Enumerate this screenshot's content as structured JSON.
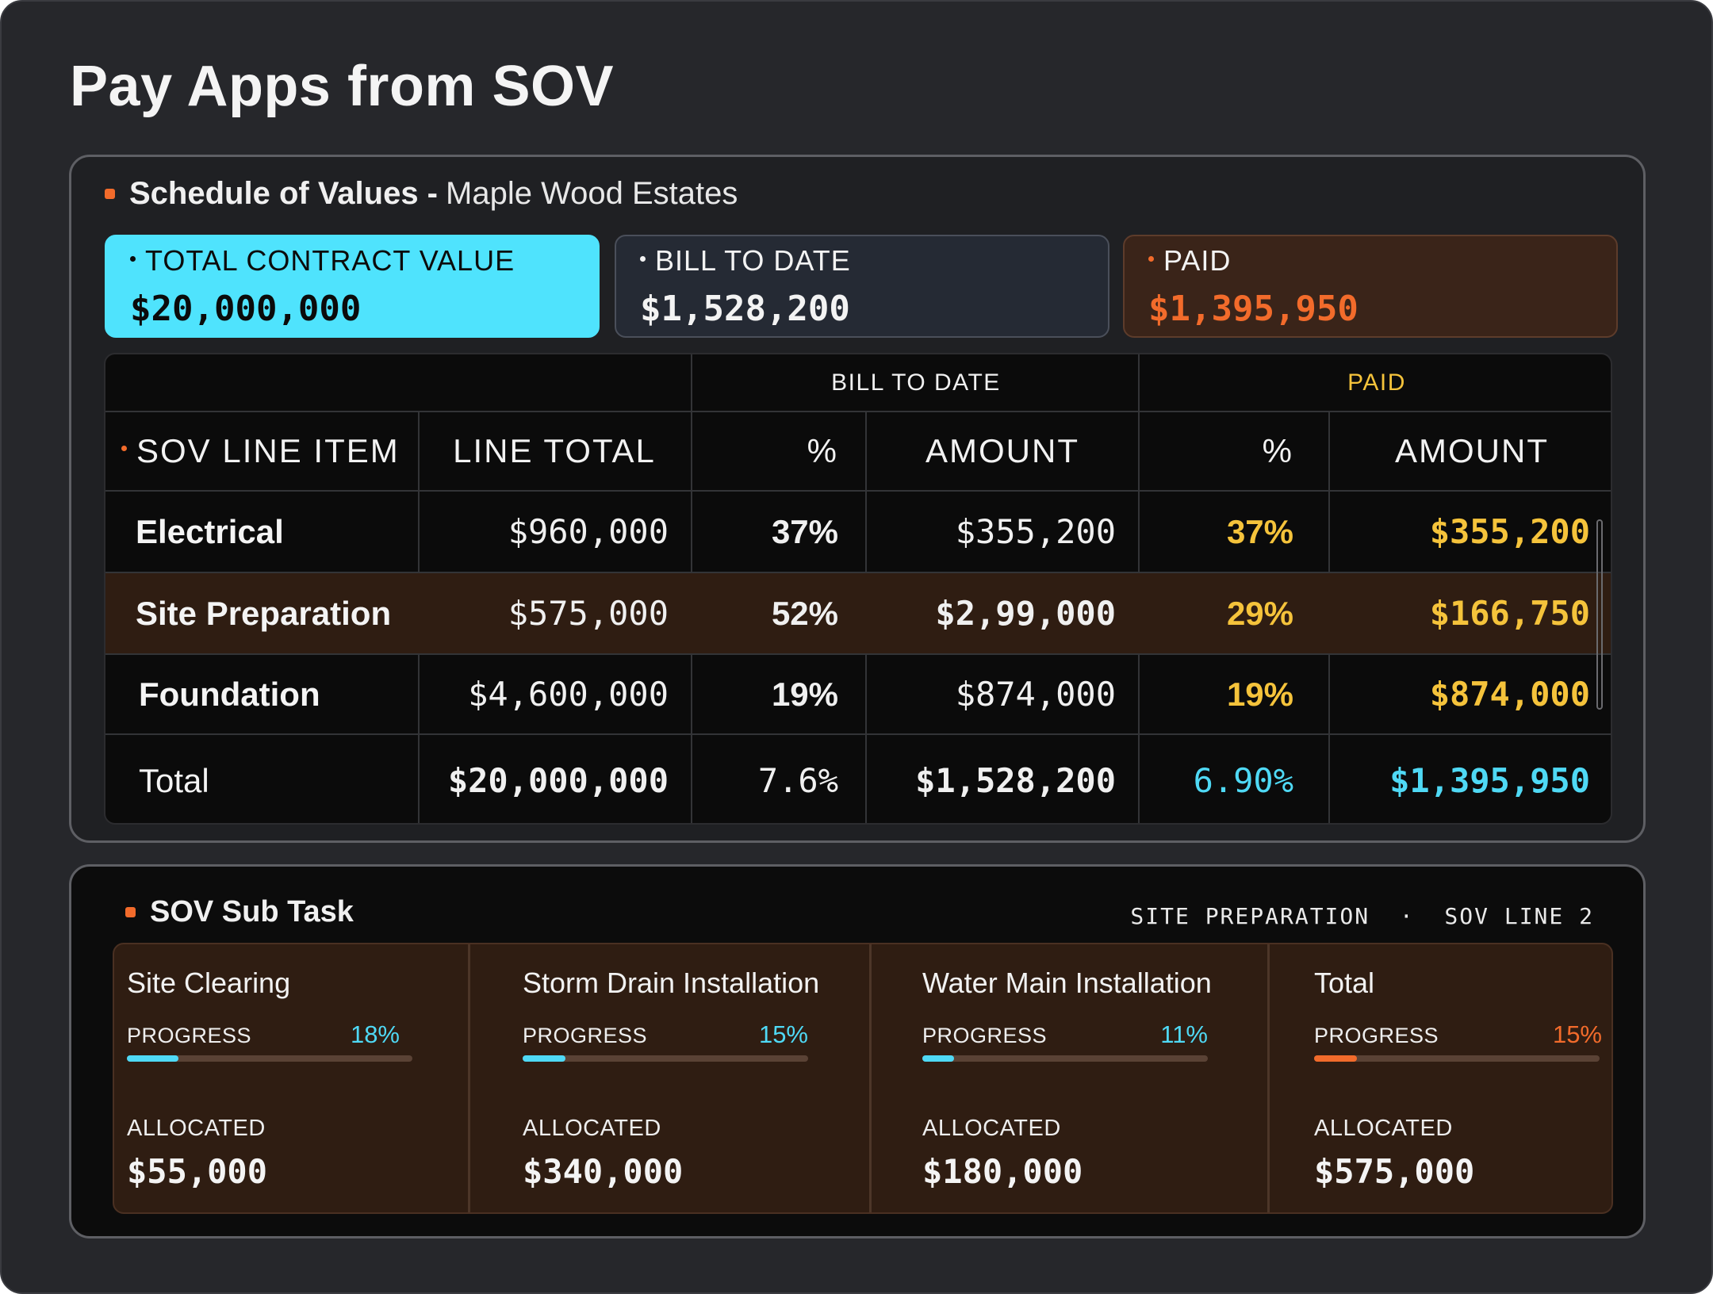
{
  "page_title": "Pay Apps from SOV",
  "sov": {
    "heading_bold": "Schedule of Values -",
    "project": "Maple Wood Estates",
    "stats": {
      "total_label": "TOTAL CONTRACT VALUE",
      "total_value": "$20,000,000",
      "bill_label": "BILL TO DATE",
      "bill_value": "$1,528,200",
      "paid_label": "PAID",
      "paid_value": "$1,395,950"
    },
    "table": {
      "group_bill": "BILL TO DATE",
      "group_paid": "PAID",
      "headers": {
        "item": "SOV LINE ITEM",
        "line_total": "LINE TOTAL",
        "bill_pct": "%",
        "bill_amount": "AMOUNT",
        "paid_pct": "%",
        "paid_amount": "AMOUNT"
      },
      "rows": [
        {
          "item": "Electrical",
          "line_total": "$960,000",
          "bill_pct": "37%",
          "bill_amount": "$355,200",
          "paid_pct": "37%",
          "paid_amount": "$355,200"
        },
        {
          "item": "Site Preparation",
          "line_total": "$575,000",
          "bill_pct": "52%",
          "bill_amount": "$2,99,000",
          "paid_pct": "29%",
          "paid_amount": "$166,750"
        },
        {
          "item": "Foundation",
          "line_total": "$4,600,000",
          "bill_pct": "19%",
          "bill_amount": "$874,000",
          "paid_pct": "19%",
          "paid_amount": "$874,000"
        }
      ],
      "total": {
        "item": "Total",
        "line_total": "$20,000,000",
        "bill_pct": "7.6%",
        "bill_amount": "$1,528,200",
        "paid_pct": "6.90%",
        "paid_amount": "$1,395,950"
      }
    }
  },
  "sub_task": {
    "heading": "SOV Sub Task",
    "meta": "SITE PREPARATION  ·  SOV LINE 2",
    "progress_label": "PROGRESS",
    "allocated_label": "ALLOCATED",
    "cards": [
      {
        "title": "Site Clearing",
        "progress": "18%",
        "progress_value": 18,
        "allocated": "$55,000",
        "accent": "#4fd9f5"
      },
      {
        "title": "Storm Drain Installation",
        "progress": "15%",
        "progress_value": 15,
        "allocated": "$340,000",
        "accent": "#4fd9f5"
      },
      {
        "title": "Water Main Installation",
        "progress": "11%",
        "progress_value": 11,
        "allocated": "$180,000",
        "accent": "#4fd9f5"
      },
      {
        "title": "Total",
        "progress": "15%",
        "progress_value": 15,
        "allocated": "$575,000",
        "accent": "#f26b2b"
      }
    ]
  },
  "colors": {
    "accent_orange": "#f26b2b",
    "accent_cyan": "#4fe3fd",
    "paid_yellow": "#f5c33b"
  }
}
